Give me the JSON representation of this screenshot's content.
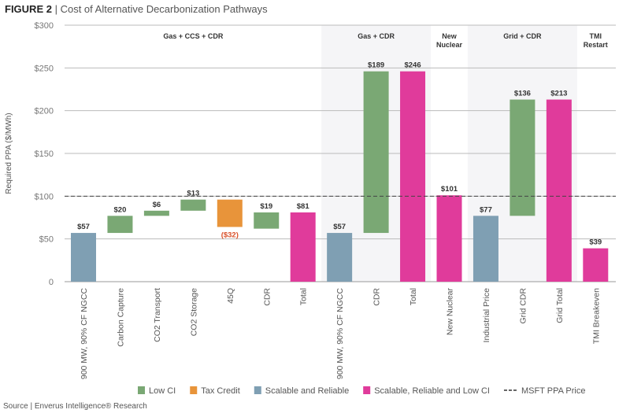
{
  "title_bold": "FIGURE 2",
  "title_sep": " | ",
  "title": "Cost of Alternative Decarbonization Pathways",
  "source": "Source | Enverus Intelligence® Research",
  "chart_data": {
    "type": "bar",
    "subtype": "waterfall",
    "ylabel": "Required PPA ($/MWh)",
    "ylim": [
      0,
      300
    ],
    "yticks": [
      0,
      50,
      100,
      150,
      200,
      250,
      300
    ],
    "ytick_labels": [
      "0",
      "$50",
      "$100",
      "$150",
      "$200",
      "$250",
      "$300"
    ],
    "reference_line": {
      "name": "MSFT PPA Price",
      "value": 100
    },
    "groups": [
      {
        "label": [
          "Gas + CCS + CDR"
        ],
        "from": 0,
        "to": 6,
        "shaded": false
      },
      {
        "label": [
          "Gas + CDR"
        ],
        "from": 7,
        "to": 9,
        "shaded": true
      },
      {
        "label": [
          "New",
          "Nuclear"
        ],
        "from": 10,
        "to": 10,
        "shaded": false
      },
      {
        "label": [
          "Grid + CDR"
        ],
        "from": 11,
        "to": 13,
        "shaded": true
      },
      {
        "label": [
          "TMI",
          "Restart"
        ],
        "from": 14,
        "to": 14,
        "shaded": false
      }
    ],
    "categories": [
      "900 MW, 90% CF NGCC",
      "Carbon Capture",
      "CO2 Transport",
      "CO2 Storage",
      "45Q",
      "CDR",
      "Total",
      "900 MW, 90% CF NGCC",
      "CDR",
      "Total",
      "New Nuclear",
      "Industrial Price",
      "Grid CDR",
      "Grid Total",
      "TMI Breakeven"
    ],
    "bars": [
      {
        "base": 0,
        "top": 57,
        "label": "$57",
        "series": "Scalable and Reliable"
      },
      {
        "base": 57,
        "top": 77,
        "label": "$20",
        "series": "Low CI"
      },
      {
        "base": 77,
        "top": 83,
        "label": "$6",
        "series": "Low CI"
      },
      {
        "base": 83,
        "top": 96,
        "label": "$13",
        "series": "Low CI"
      },
      {
        "base": 96,
        "top": 64,
        "label": "($32)",
        "series": "Tax Credit"
      },
      {
        "base": 62,
        "top": 81,
        "label": "$19",
        "series": "Low CI"
      },
      {
        "base": 0,
        "top": 81,
        "label": "$81",
        "series": "Scalable, Reliable and Low CI"
      },
      {
        "base": 0,
        "top": 57,
        "label": "$57",
        "series": "Scalable and Reliable"
      },
      {
        "base": 57,
        "top": 246,
        "label": "$189",
        "series": "Low CI"
      },
      {
        "base": 0,
        "top": 246,
        "label": "$246",
        "series": "Scalable, Reliable and Low CI"
      },
      {
        "base": 0,
        "top": 101,
        "label": "$101",
        "series": "Scalable, Reliable and Low CI"
      },
      {
        "base": 0,
        "top": 77,
        "label": "$77",
        "series": "Scalable and Reliable"
      },
      {
        "base": 77,
        "top": 213,
        "label": "$136",
        "series": "Low CI"
      },
      {
        "base": 0,
        "top": 213,
        "label": "$213",
        "series": "Scalable, Reliable and Low CI"
      },
      {
        "base": 0,
        "top": 39,
        "label": "$39",
        "series": "Scalable, Reliable and Low CI"
      }
    ],
    "legend": [
      {
        "name": "Low CI",
        "color": "#7aa874"
      },
      {
        "name": "Tax Credit",
        "color": "#e8943a"
      },
      {
        "name": "Scalable and Reliable",
        "color": "#7f9fb3"
      },
      {
        "name": "Scalable, Reliable and Low CI",
        "color": "#e03b9b"
      },
      {
        "name": "MSFT PPA Price",
        "color": "#333333",
        "dashed": true
      }
    ],
    "legend_position": "bottom",
    "negative_label_color": "#d9502a"
  }
}
